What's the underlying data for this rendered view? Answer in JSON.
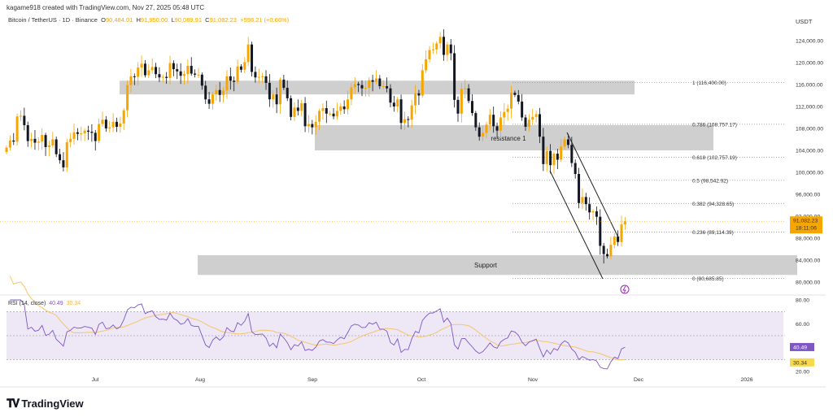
{
  "header": {
    "credit": "kagame918 created with TradingView.com, Nov 27, 2025 05:48 UTC"
  },
  "legend": {
    "symbol": "Bitcoin / TetherUS · 1D · Binance",
    "o_label": "O",
    "o": "90,484.01",
    "h_label": "H",
    "h": "91,950.00",
    "l_label": "L",
    "l": "90,089.91",
    "c_label": "C",
    "c": "91,082.23",
    "change": "+598.21 (+0.66%)"
  },
  "currency": "USDT",
  "price_label": {
    "value": "91,082.23",
    "countdown": "18:11:06"
  },
  "rsi": {
    "title": "RSI (14, close)",
    "value": "40.49",
    "ma_value": "30.34"
  },
  "logo": "TradingView",
  "colors": {
    "up": "#f7a600",
    "down": "#131722",
    "zone": "#cfcfcf",
    "rsi_line": "#7e57c2",
    "rsi_ma": "#f5c56a",
    "rsi_band": "#ede7f6"
  },
  "chart_data": [
    {
      "type": "candlestick",
      "interval": "1D",
      "start_date": "2025-06-06",
      "end_date": "2025-11-27",
      "closes_thousands": [
        104.5,
        105.8,
        105.6,
        110.2,
        110.3,
        108.6,
        105.7,
        106.1,
        105.4,
        105.6,
        106.8,
        104.6,
        104.9,
        106.0,
        103.3,
        102.2,
        100.9,
        105.5,
        106.1,
        107.3,
        107.0,
        107.1,
        107.6,
        107.4,
        107.2,
        105.7,
        108.8,
        109.6,
        108.0,
        108.2,
        109.2,
        108.3,
        108.9,
        111.3,
        115.9,
        117.5,
        117.4,
        119.1,
        119.8,
        117.7,
        118.6,
        119.2,
        117.9,
        117.3,
        117.4,
        117.2,
        119.9,
        118.8,
        118.4,
        117.6,
        117.9,
        119.4,
        118.0,
        117.8,
        117.8,
        115.8,
        113.3,
        112.5,
        114.2,
        115.0,
        114.1,
        114.9,
        117.5,
        116.7,
        116.5,
        119.3,
        118.7,
        120.1,
        123.3,
        118.3,
        117.3,
        117.4,
        117.5,
        116.3,
        113.3,
        114.2,
        112.4,
        116.9,
        115.4,
        113.5,
        110.1,
        111.8,
        111.2,
        112.6,
        108.4,
        108.8,
        108.2,
        109.2,
        111.2,
        111.7,
        110.7,
        110.7,
        110.2,
        111.2,
        112.0,
        111.5,
        113.3,
        115.5,
        116.1,
        115.9,
        115.3,
        115.4,
        116.8,
        116.5,
        117.1,
        115.7,
        115.7,
        115.3,
        112.7,
        112.0,
        113.3,
        109.0,
        109.7,
        109.6,
        112.2,
        114.4,
        114.0,
        118.6,
        120.6,
        122.3,
        122.4,
        123.5,
        124.7,
        121.4,
        123.3,
        121.7,
        113.2,
        110.7,
        115.2,
        115.3,
        113.0,
        110.8,
        108.2,
        106.5,
        107.2,
        108.7,
        110.5,
        108.4,
        107.6,
        110.0,
        111.0,
        111.6,
        114.5,
        114.1,
        112.9,
        110.0,
        108.3,
        109.6,
        110.1,
        110.6,
        106.5,
        101.5,
        103.9,
        101.3,
        103.4,
        102.3,
        104.7,
        106.0,
        105.0,
        101.7,
        99.7,
        94.4,
        95.5,
        94.2,
        92.7,
        92.9,
        91.9,
        86.6,
        85.1,
        84.7,
        86.8,
        88.3,
        87.3,
        90.5,
        91.082
      ],
      "y_ticks": [
        "124,000.00",
        "120,000.00",
        "116,000.00",
        "112,000.00",
        "108,000.00",
        "104,000.00",
        "100,000.00",
        "96,000.00",
        "92,000.00",
        "88,000.00",
        "84,000.00",
        "80,000.00"
      ],
      "ylim": [
        79000,
        125500
      ],
      "x_ticks": [
        "Jul",
        "Aug",
        "Sep",
        "Oct",
        "Nov",
        "Dec",
        "2026"
      ],
      "zones": [
        {
          "label": "",
          "from": 114200,
          "to": 116700
        },
        {
          "label": "resistance 1",
          "from": 104000,
          "to": 108600
        },
        {
          "label": "Support",
          "from": 81300,
          "to": 84900
        }
      ],
      "fib_levels": [
        {
          "label": "1 (116,400.00)",
          "price": 116400
        },
        {
          "label": "0.786 (108,757.17)",
          "price": 108757.17
        },
        {
          "label": "0.618 (102,757.19)",
          "price": 102757.19
        },
        {
          "label": "0.5 (98,542.92)",
          "price": 98542.92
        },
        {
          "label": "0.382 (94,328.65)",
          "price": 94328.65
        },
        {
          "label": "0.236 (89,114.39)",
          "price": 89114.39
        },
        {
          "label": "0 (80,685.85)",
          "price": 80685.85
        }
      ]
    },
    {
      "type": "line",
      "title": "RSI (14, close)",
      "y_ticks": [
        "80.00",
        "60.00",
        "20.00"
      ],
      "bands": [
        70,
        50,
        30
      ],
      "ylim": [
        20,
        80
      ]
    }
  ]
}
